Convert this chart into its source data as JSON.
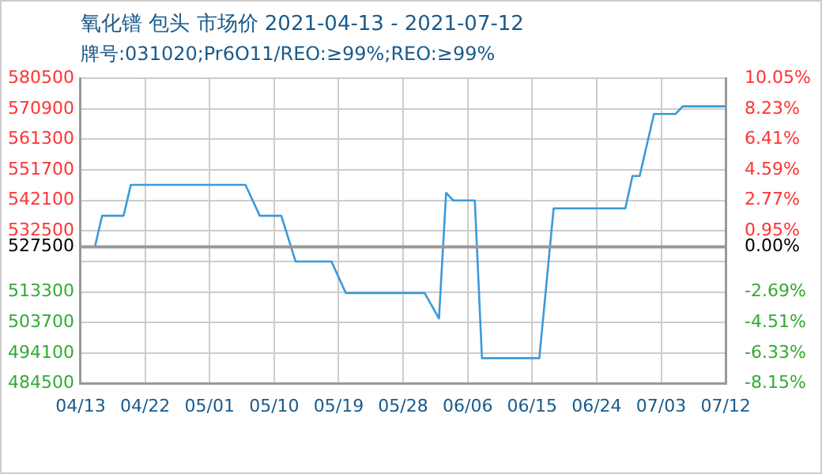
{
  "chart_data": {
    "type": "line",
    "title": "氧化镨 包头 市场价 2021-04-13 - 2021-07-12",
    "subtitle": "牌号:031020;Pr6O11/REO:≥99%;REO:≥99%",
    "x": [
      "2021-04-13",
      "2021-04-15",
      "2021-04-16",
      "2021-04-19",
      "2021-04-20",
      "2021-05-06",
      "2021-05-08",
      "2021-05-11",
      "2021-05-13",
      "2021-05-18",
      "2021-05-20",
      "2021-05-31",
      "2021-06-02",
      "2021-06-03",
      "2021-06-04",
      "2021-06-07",
      "2021-06-08",
      "2021-06-16",
      "2021-06-18",
      "2021-06-28",
      "2021-06-29",
      "2021-06-30",
      "2021-07-02",
      "2021-07-05",
      "2021-07-06",
      "2021-07-12"
    ],
    "series": [
      {
        "color": "#3a9ad9",
        "values": [
          527500,
          527500,
          537300,
          537300,
          547000,
          547000,
          537300,
          537300,
          522900,
          522900,
          513000,
          513000,
          505000,
          544500,
          542100,
          542100,
          492500,
          492500,
          539600,
          539600,
          549800,
          549800,
          569300,
          569300,
          571700,
          571700
        ]
      }
    ],
    "xlim": [
      "2021-04-13",
      "2021-07-12"
    ],
    "xticks": [
      {
        "value": "2021-04-13",
        "label": "04/13"
      },
      {
        "value": "2021-04-22",
        "label": "04/22"
      },
      {
        "value": "2021-05-01",
        "label": "05/01"
      },
      {
        "value": "2021-05-10",
        "label": "05/10"
      },
      {
        "value": "2021-05-19",
        "label": "05/19"
      },
      {
        "value": "2021-05-28",
        "label": "05/28"
      },
      {
        "value": "2021-06-06",
        "label": "06/06"
      },
      {
        "value": "2021-06-15",
        "label": "06/15"
      },
      {
        "value": "2021-06-24",
        "label": "06/24"
      },
      {
        "value": "2021-07-03",
        "label": "07/03"
      },
      {
        "value": "2021-07-12",
        "label": "07/12"
      }
    ],
    "ylim": [
      484500,
      580500
    ],
    "yticks": [
      484500,
      494100,
      503700,
      513300,
      {
        "value": 522900,
        "label": null
      },
      527500,
      532500,
      542100,
      551700,
      561300,
      570900,
      580500
    ],
    "y2lim": [
      -8.15,
      10.05
    ],
    "y2ticks": [
      {
        "value": -8.15,
        "label": "-8.15%"
      },
      {
        "value": -6.33,
        "label": "-6.33%"
      },
      {
        "value": -4.51,
        "label": "-4.51%"
      },
      {
        "value": -2.69,
        "label": "-2.69%"
      },
      {
        "value": -0.87,
        "label": null
      },
      {
        "value": 0,
        "label": "0.00%"
      },
      {
        "value": 0.95,
        "label": "0.95%"
      },
      {
        "value": 2.77,
        "label": "2.77%"
      },
      {
        "value": 4.59,
        "label": "4.59%"
      },
      {
        "value": 6.41,
        "label": "6.41%"
      },
      {
        "value": 8.23,
        "label": "8.23%"
      },
      {
        "value": 10.05,
        "label": "10.05%"
      }
    ],
    "ref_lines": [
      {
        "axis": "y",
        "value": 527500,
        "color": "#999999"
      }
    ],
    "grid": true,
    "legend": false,
    "marker": "none",
    "line_style": "solid"
  }
}
